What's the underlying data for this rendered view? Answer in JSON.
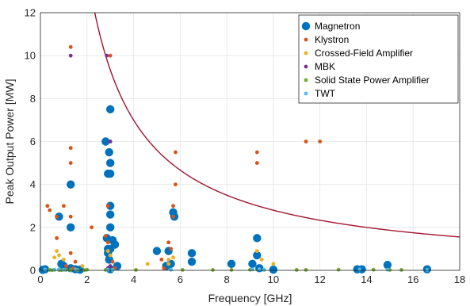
{
  "chart_data": {
    "type": "scatter",
    "xlabel": "Frequency [GHz]",
    "ylabel": "Peak Output Power [MW]",
    "xlim": [
      0,
      18
    ],
    "ylim": [
      0,
      12
    ],
    "xticks": [
      "0",
      "2",
      "4",
      "6",
      "8",
      "10",
      "12",
      "14",
      "16",
      "18"
    ],
    "yticks": [
      "0",
      "2",
      "4",
      "6",
      "8",
      "10",
      "12"
    ],
    "grid": true,
    "legend_position": "top-right",
    "curve": {
      "color": "#a2142f",
      "k": 28
    },
    "series": [
      {
        "name": "Magnetron",
        "color": "#0072bd",
        "marker_size": "large",
        "points": [
          [
            0.1,
            0.02
          ],
          [
            0.2,
            0.05
          ],
          [
            0.8,
            2.5
          ],
          [
            0.9,
            0.3
          ],
          [
            1.0,
            0.2
          ],
          [
            1.3,
            4.0
          ],
          [
            1.3,
            2.0
          ],
          [
            1.3,
            0.1
          ],
          [
            1.5,
            0.05
          ],
          [
            1.7,
            0.03
          ],
          [
            2.8,
            6.0
          ],
          [
            2.85,
            1.5
          ],
          [
            2.9,
            4.5
          ],
          [
            2.9,
            1.0
          ],
          [
            2.9,
            0.8
          ],
          [
            2.95,
            5.5
          ],
          [
            2.95,
            0.5
          ],
          [
            3.0,
            7.5
          ],
          [
            3.0,
            5.0
          ],
          [
            3.0,
            4.5
          ],
          [
            3.0,
            3.0
          ],
          [
            3.0,
            2.6
          ],
          [
            3.0,
            2.0
          ],
          [
            3.0,
            1.0
          ],
          [
            3.0,
            0.05
          ],
          [
            3.1,
            1.4
          ],
          [
            3.2,
            1.2
          ],
          [
            3.3,
            0.2
          ],
          [
            5.0,
            0.9
          ],
          [
            5.4,
            0.2
          ],
          [
            5.5,
            0.9
          ],
          [
            5.6,
            0.3
          ],
          [
            5.7,
            2.7
          ],
          [
            5.75,
            2.5
          ],
          [
            6.5,
            0.8
          ],
          [
            6.5,
            0.4
          ],
          [
            8.2,
            0.3
          ],
          [
            9.1,
            0.3
          ],
          [
            9.3,
            1.5
          ],
          [
            9.3,
            0.7
          ],
          [
            9.4,
            0.1
          ],
          [
            10.0,
            0.03
          ],
          [
            13.6,
            0.05
          ],
          [
            13.8,
            0.05
          ],
          [
            14.9,
            0.25
          ],
          [
            16.6,
            0.05
          ]
        ]
      },
      {
        "name": "Klystron",
        "color": "#d95319",
        "marker_size": "small",
        "points": [
          [
            0.3,
            3.0
          ],
          [
            0.4,
            2.8
          ],
          [
            0.7,
            2.5
          ],
          [
            0.7,
            1.5
          ],
          [
            1.0,
            3.0
          ],
          [
            1.1,
            0.2
          ],
          [
            1.3,
            10.4
          ],
          [
            1.3,
            5.7
          ],
          [
            1.3,
            5.0
          ],
          [
            1.3,
            2.5
          ],
          [
            1.3,
            0.8
          ],
          [
            1.4,
            0.1
          ],
          [
            1.5,
            0.4
          ],
          [
            2.2,
            2.0
          ],
          [
            2.8,
            1.6
          ],
          [
            2.9,
            3.0
          ],
          [
            2.9,
            1.3
          ],
          [
            3.0,
            10.0
          ],
          [
            3.0,
            6.0
          ],
          [
            3.1,
            0.4
          ],
          [
            3.2,
            0.1
          ],
          [
            5.2,
            0.5
          ],
          [
            5.3,
            0.1
          ],
          [
            5.5,
            1.3
          ],
          [
            5.6,
            1.0
          ],
          [
            5.7,
            3.0
          ],
          [
            5.7,
            2.5
          ],
          [
            5.8,
            5.5
          ],
          [
            5.8,
            4.0
          ],
          [
            9.3,
            5.5
          ],
          [
            9.3,
            5.0
          ],
          [
            11.4,
            6.0
          ],
          [
            12.0,
            6.0
          ]
        ]
      },
      {
        "name": "Crossed-Field Amplifier",
        "color": "#edb120",
        "marker_size": "small",
        "points": [
          [
            0.6,
            0.6
          ],
          [
            0.7,
            0.9
          ],
          [
            0.8,
            0.7
          ],
          [
            1.0,
            0.5
          ],
          [
            1.8,
            0.2
          ],
          [
            2.9,
            0.9
          ],
          [
            3.0,
            0.7
          ],
          [
            4.6,
            0.3
          ],
          [
            5.5,
            0.3
          ],
          [
            5.5,
            0.5
          ],
          [
            5.7,
            0.6
          ],
          [
            9.3,
            0.9
          ],
          [
            9.5,
            0.5
          ],
          [
            10.0,
            0.3
          ]
        ]
      },
      {
        "name": "MBK",
        "color": "#7e2f8e",
        "marker_size": "small",
        "points": [
          [
            1.3,
            10.0
          ],
          [
            2.85,
            10.0
          ],
          [
            2.9,
            0.1
          ],
          [
            3.0,
            6.0
          ],
          [
            3.0,
            0.2
          ]
        ]
      },
      {
        "name": "Solid State Power Amplifier",
        "color": "#77ac30",
        "marker_size": "small",
        "points": [
          [
            0.4,
            0.02
          ],
          [
            0.5,
            0.01
          ],
          [
            0.6,
            0.02
          ],
          [
            0.8,
            0.01
          ],
          [
            0.9,
            0.01
          ],
          [
            1.1,
            0.02
          ],
          [
            1.3,
            0.01
          ],
          [
            1.6,
            0.02
          ],
          [
            1.9,
            0.01
          ],
          [
            2.0,
            0.03
          ],
          [
            2.8,
            0.02
          ],
          [
            3.1,
            0.01
          ],
          [
            4.1,
            0.02
          ],
          [
            5.6,
            0.03
          ],
          [
            6.1,
            0.02
          ],
          [
            7.4,
            0.02
          ],
          [
            8.2,
            0.02
          ],
          [
            9.0,
            0.03
          ],
          [
            9.6,
            0.02
          ],
          [
            11.0,
            0.02
          ],
          [
            11.4,
            0.02
          ],
          [
            12.8,
            0.03
          ],
          [
            14.3,
            0.03
          ],
          [
            15.0,
            0.02
          ],
          [
            15.5,
            0.02
          ]
        ]
      },
      {
        "name": "TWT",
        "color": "#4dbeee",
        "marker_size": "small",
        "points": [
          [
            0.2,
            0.04
          ],
          [
            0.6,
            0.03
          ],
          [
            0.8,
            0.05
          ],
          [
            1.0,
            0.02
          ],
          [
            1.5,
            0.04
          ],
          [
            2.9,
            0.03
          ],
          [
            3.1,
            0.02
          ],
          [
            5.6,
            0.03
          ],
          [
            9.1,
            0.04
          ],
          [
            9.4,
            0.05
          ],
          [
            9.6,
            0.03
          ],
          [
            13.7,
            0.04
          ],
          [
            14.9,
            0.03
          ],
          [
            16.6,
            0.02
          ]
        ]
      }
    ]
  }
}
